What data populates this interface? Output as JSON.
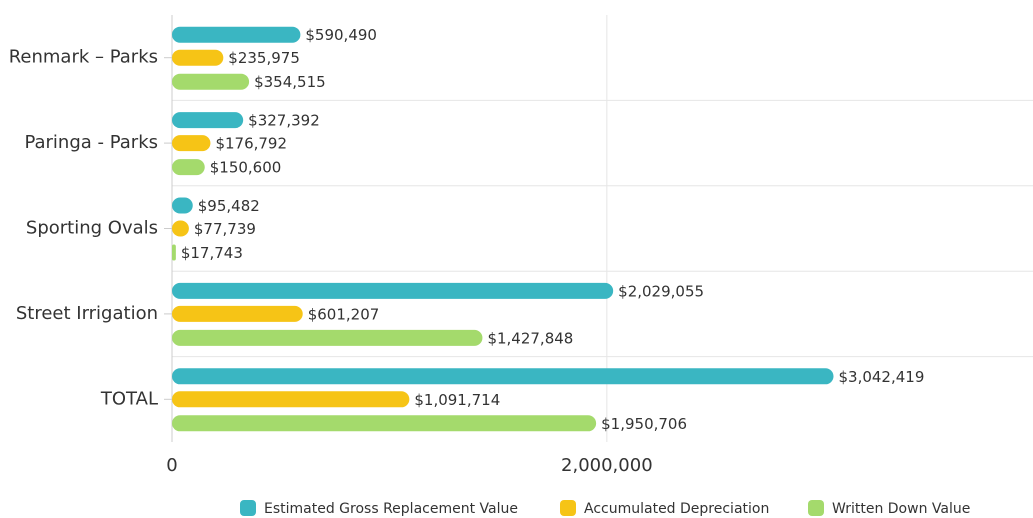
{
  "chart_data": {
    "type": "hbar",
    "categories": [
      "Renmark – Parks",
      "Paringa - Parks",
      "Sporting Ovals",
      "Street Irrigation",
      "TOTAL"
    ],
    "series": [
      {
        "name": "Estimated Gross Replacement Value",
        "color": "#3ab6c2",
        "values": [
          590490,
          327392,
          95482,
          2029055,
          3042419
        ],
        "value_labels": [
          "$590,490",
          "$327,392",
          "$95,482",
          "$2,029,055",
          "$3,042,419"
        ]
      },
      {
        "name": "Accumulated Depreciation",
        "color": "#f6c416",
        "values": [
          235975,
          176792,
          77739,
          601207,
          1091714
        ],
        "value_labels": [
          "$235,975",
          "$176,792",
          "$77,739",
          "$601,207",
          "$1,091,714"
        ]
      },
      {
        "name": "Written Down Value",
        "color": "#a4da6c",
        "values": [
          354515,
          150600,
          17743,
          1427848,
          1950706
        ],
        "value_labels": [
          "$354,515",
          "$150,600",
          "$17,743",
          "$1,427,848",
          "$1,950,706"
        ]
      }
    ],
    "xlim": [
      0,
      3960000
    ],
    "xticks": [
      0,
      {
        "value": 2000000,
        "label": "2,000,000"
      }
    ],
    "grid": true,
    "legend": "bottom"
  }
}
